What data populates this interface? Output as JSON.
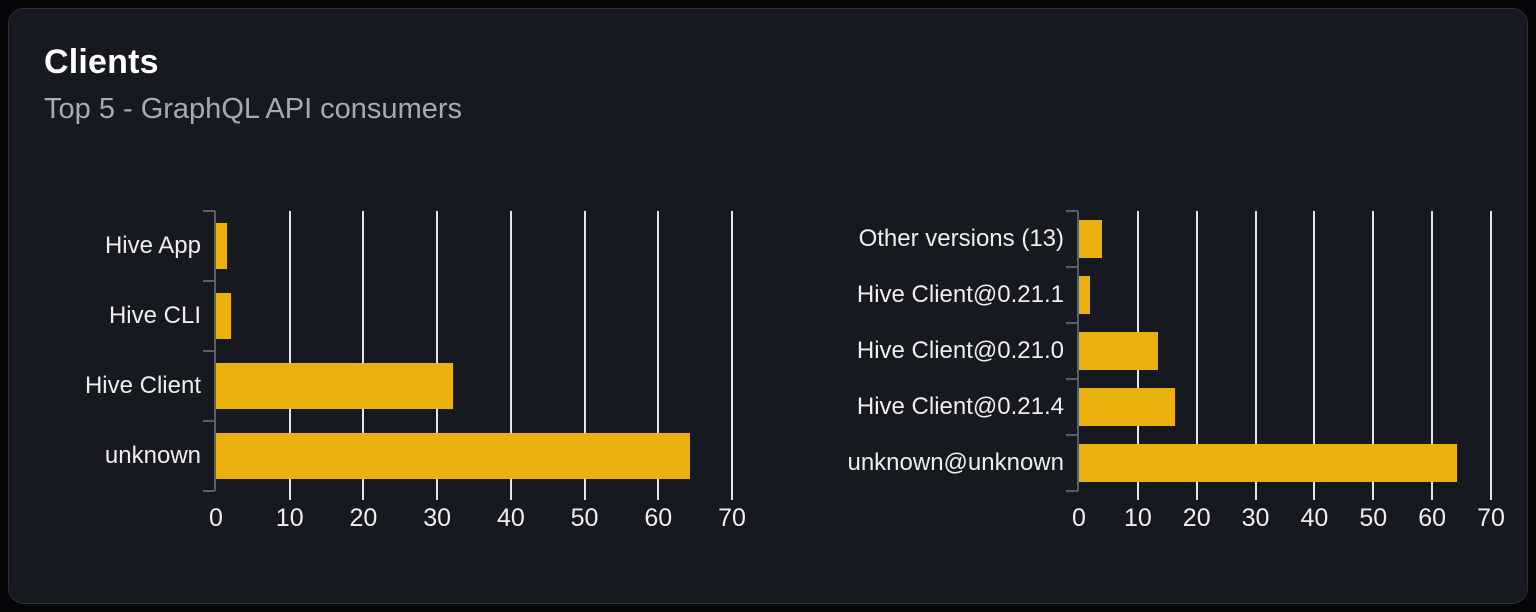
{
  "card": {
    "title": "Clients",
    "subtitle": "Top 5 - GraphQL API consumers"
  },
  "colors": {
    "page_bg": "#060608",
    "card_bg": "#16191f",
    "card_border": "#2e3036",
    "bar": "#eab10d",
    "gridline": "#e2e6ed",
    "axis": "#5b5e64",
    "title_text": "#ffffff",
    "subtitle_text": "#a7abb1",
    "label_text": "#eceef0"
  },
  "chart_data": [
    {
      "type": "bar",
      "orientation": "horizontal",
      "categories": [
        "Hive App",
        "Hive CLI",
        "Hive Client",
        "unknown"
      ],
      "values": [
        1.5,
        2.1,
        32.2,
        64.3
      ],
      "xlim": [
        0,
        70
      ],
      "xticks": [
        0,
        10,
        20,
        30,
        40,
        50,
        60,
        70
      ],
      "grid": true,
      "legend": "none",
      "bar_color": "#eab10d"
    },
    {
      "type": "bar",
      "orientation": "horizontal",
      "categories": [
        "Other versions (13)",
        "Hive Client@0.21.1",
        "Hive Client@0.21.0",
        "Hive Client@0.21.4",
        "unknown@unknown"
      ],
      "values": [
        3.9,
        1.9,
        13.5,
        16.3,
        64.3
      ],
      "xlim": [
        0,
        70
      ],
      "xticks": [
        0,
        10,
        20,
        30,
        40,
        50,
        60,
        70
      ],
      "grid": true,
      "legend": "none",
      "bar_color": "#eab10d"
    }
  ]
}
